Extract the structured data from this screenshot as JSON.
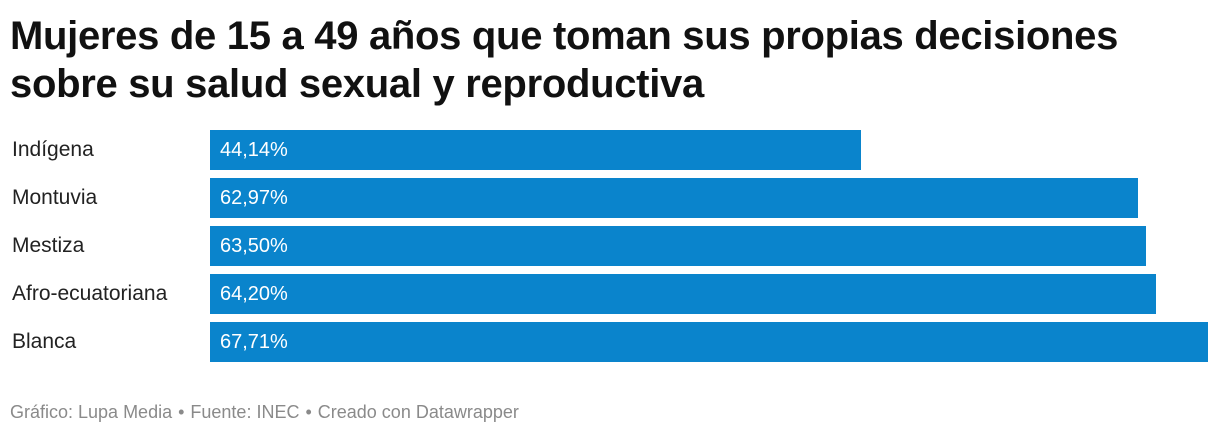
{
  "chart_data": {
    "type": "bar",
    "orientation": "horizontal",
    "title": "Mujeres de 15 a 49 años que toman sus propias decisiones sobre su salud sexual y reproductiva",
    "categories": [
      "Indígena",
      "Montuvia",
      "Mestiza",
      "Afro-ecuatoriana",
      "Blanca"
    ],
    "values": [
      44.14,
      62.97,
      63.5,
      64.2,
      67.71
    ],
    "value_labels": [
      "44,14%",
      "62,97%",
      "63,50%",
      "64,20%",
      "67,71%"
    ],
    "xlim": [
      0,
      67.71
    ],
    "xlabel": "",
    "ylabel": "",
    "bar_color": "#0a84cc",
    "grid": false
  },
  "footer": {
    "graphic": "Gráfico: Lupa Media",
    "source": "Fuente: INEC",
    "created": "Creado con Datawrapper",
    "separator": "•"
  }
}
